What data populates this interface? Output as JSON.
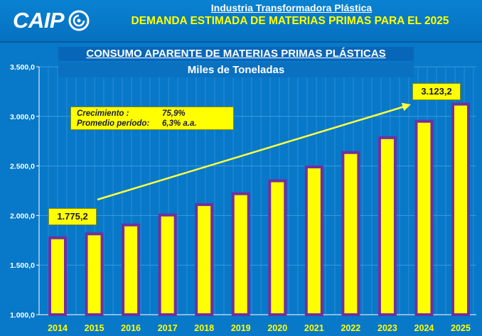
{
  "header": {
    "logo_text": "CAIP",
    "subtitle": "Industria Transformadora Plástica",
    "title": "DEMANDA ESTIMADA DE MATERIAS PRIMAS PARA EL 2025"
  },
  "growth_box": {
    "growth_label": "Crecimiento :",
    "growth_value": "75,9%",
    "avg_label": "Promedio período:",
    "avg_value": "6,3% a.a."
  },
  "callouts": {
    "start": "1.775,2",
    "end": "3.123,2"
  },
  "colors": {
    "background": "#0878c8",
    "bar_fill": "#ffff00",
    "bar_border": "#7030a0",
    "text_yellow": "#ffff00",
    "arrow": "#ffff40"
  },
  "chart_data": {
    "type": "bar",
    "title": "CONSUMO APARENTE DE MATERIAS PRIMAS PLÁSTICAS",
    "subtitle": "Miles de Toneladas",
    "categories": [
      "2014",
      "2015",
      "2016",
      "2017",
      "2018",
      "2019",
      "2020",
      "2021",
      "2022",
      "2023",
      "2024",
      "2025"
    ],
    "values": [
      1775.2,
      1815,
      1905,
      2005,
      2110,
      2220,
      2350,
      2490,
      2635,
      2785,
      2950,
      3123.2
    ],
    "ylim": [
      1000,
      3500
    ],
    "yticks": [
      1000,
      1500,
      2000,
      2500,
      3000,
      3500
    ],
    "ytick_labels": [
      "1.000,0",
      "1.500,0",
      "2.000,0",
      "2.500,0",
      "3.000,0",
      "3.500,0"
    ],
    "grid": true,
    "legend": "none"
  }
}
